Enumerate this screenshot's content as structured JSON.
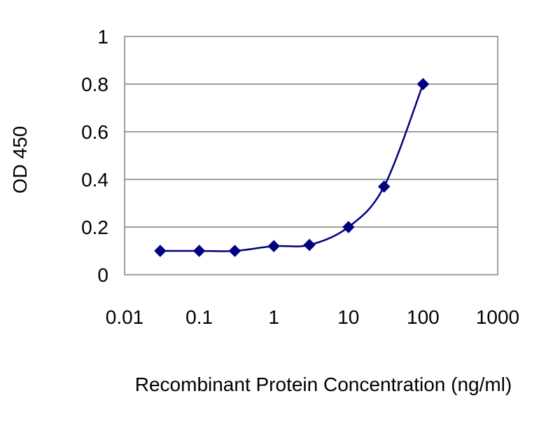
{
  "chart_data": {
    "type": "line",
    "title": "",
    "xlabel": "Recombinant Protein Concentration (ng/ml)",
    "ylabel": "OD 450",
    "x_scale": "log",
    "xlim": [
      0.01,
      1000
    ],
    "ylim": [
      0,
      1
    ],
    "x_ticks": [
      0.01,
      0.1,
      1,
      10,
      100,
      1000
    ],
    "x_tick_labels": [
      "0.01",
      "0.1",
      "1",
      "10",
      "100",
      "1000"
    ],
    "y_ticks": [
      0,
      0.2,
      0.4,
      0.6,
      0.8,
      1
    ],
    "y_tick_labels": [
      "0",
      "0.2",
      "0.4",
      "0.6",
      "0.8",
      "1"
    ],
    "grid": "horizontal",
    "legend": "none",
    "series": [
      {
        "x": [
          0.03,
          0.1,
          0.3,
          1,
          3,
          10,
          30,
          100
        ],
        "y": [
          0.1,
          0.1,
          0.1,
          0.12,
          0.125,
          0.2,
          0.37,
          0.8
        ],
        "marker": "diamond",
        "color": "#000080"
      }
    ],
    "colors": {
      "line": "#000080",
      "grid": "#808080",
      "frame": "#808080"
    }
  }
}
